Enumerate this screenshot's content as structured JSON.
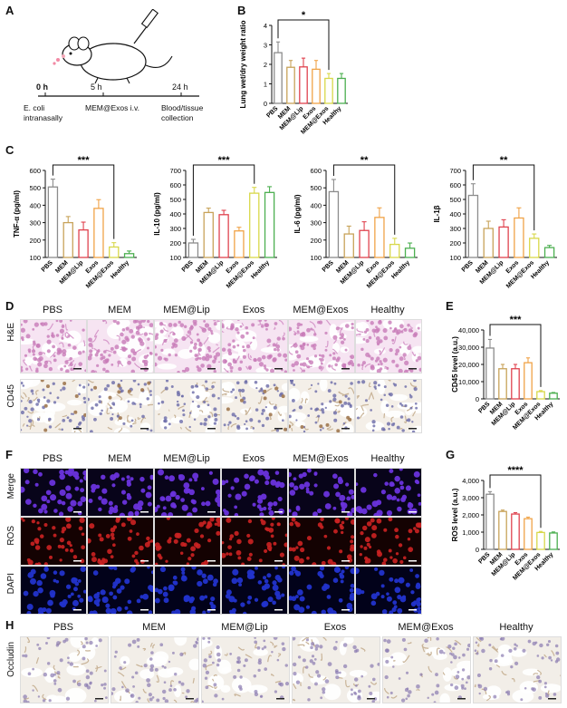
{
  "panels": {
    "A": {
      "label": "A",
      "timeline": [
        "0 h",
        "5 h",
        "24 h"
      ],
      "steps": [
        "E. coli intranasally",
        "MEM@Exos i.v.",
        "Blood/tissue collection"
      ]
    },
    "B": {
      "label": "B"
    },
    "C": {
      "label": "C"
    },
    "D": {
      "label": "D",
      "rows": [
        "H&E",
        "CD45"
      ]
    },
    "E": {
      "label": "E"
    },
    "F": {
      "label": "F",
      "rows": [
        "Merge",
        "ROS",
        "DAPI"
      ]
    },
    "G": {
      "label": "G"
    },
    "H": {
      "label": "H",
      "rows": [
        "Occludin"
      ]
    }
  },
  "groups": [
    "PBS",
    "MEM",
    "MEM@Lip",
    "Exos",
    "MEM@Exos",
    "Healthy"
  ],
  "colors": {
    "PBS": "#8c8c8c",
    "MEM": "#c8a35a",
    "MEM@Lip": "#e0434f",
    "Exos": "#f0a347",
    "MEM@Exos": "#d8d84a",
    "Healthy": "#4caf50",
    "he_stain": "#c87ab8",
    "ihc_stain": "#a07850",
    "dapi": "#2233cc",
    "ros": "#cc2222"
  },
  "chart_data": [
    {
      "id": "B",
      "type": "bar",
      "categories": [
        "PBS",
        "MEM",
        "MEM@Lip",
        "Exos",
        "MEM@Exos",
        "Healthy"
      ],
      "values": [
        2.6,
        1.85,
        1.87,
        1.75,
        1.28,
        1.28
      ],
      "errors": [
        0.55,
        0.35,
        0.45,
        0.45,
        0.25,
        0.25
      ],
      "ylabel": "Lung wet/dry weight ratio",
      "ylim": [
        0,
        4
      ],
      "yticks": [
        0,
        1,
        2,
        3,
        4
      ],
      "sig": {
        "from": 0,
        "to": 4,
        "label": "*"
      }
    },
    {
      "id": "C1",
      "type": "bar",
      "categories": [
        "PBS",
        "MEM",
        "MEM@Lip",
        "Exos",
        "MEM@Exos",
        "Healthy"
      ],
      "values": [
        505,
        300,
        258,
        382,
        160,
        122
      ],
      "errors": [
        45,
        35,
        45,
        50,
        25,
        15
      ],
      "ylabel": "TNF-α (pg/ml)",
      "ylim": [
        100,
        600
      ],
      "yticks": [
        100,
        200,
        300,
        400,
        500,
        600
      ],
      "sig": {
        "from": 0,
        "to": 4,
        "label": "***"
      }
    },
    {
      "id": "C2",
      "type": "bar",
      "categories": [
        "PBS",
        "MEM",
        "MEM@Lip",
        "Exos",
        "MEM@Exos",
        "Healthy"
      ],
      "values": [
        200,
        410,
        395,
        283,
        543,
        548
      ],
      "errors": [
        25,
        30,
        30,
        25,
        40,
        40
      ],
      "ylabel": "IL-10 (pg/ml)",
      "ylim": [
        100,
        700
      ],
      "yticks": [
        100,
        200,
        300,
        400,
        500,
        600,
        700
      ],
      "sig": {
        "from": 0,
        "to": 4,
        "label": "***"
      }
    },
    {
      "id": "C3",
      "type": "bar",
      "categories": [
        "PBS",
        "MEM",
        "MEM@Lip",
        "Exos",
        "MEM@Exos",
        "Healthy"
      ],
      "values": [
        478,
        235,
        255,
        330,
        175,
        153
      ],
      "errors": [
        70,
        45,
        50,
        55,
        35,
        30
      ],
      "ylabel": "IL-6 (pg/ml)",
      "ylim": [
        100,
        600
      ],
      "yticks": [
        100,
        200,
        300,
        400,
        500,
        600
      ],
      "sig": {
        "from": 0,
        "to": 4,
        "label": "**"
      }
    },
    {
      "id": "C4",
      "type": "bar",
      "categories": [
        "PBS",
        "MEM",
        "MEM@Lip",
        "Exos",
        "MEM@Exos",
        "Healthy"
      ],
      "values": [
        528,
        300,
        310,
        372,
        232,
        168
      ],
      "errors": [
        80,
        50,
        50,
        70,
        30,
        15
      ],
      "ylabel": "IL-1β",
      "ylim": [
        100,
        700
      ],
      "yticks": [
        100,
        200,
        300,
        400,
        500,
        600,
        700
      ],
      "sig": {
        "from": 0,
        "to": 4,
        "label": "**"
      }
    },
    {
      "id": "E",
      "type": "bar",
      "categories": [
        "PBS",
        "MEM",
        "MEM@Lip",
        "Exos",
        "MEM@Exos",
        "Healthy"
      ],
      "values": [
        29500,
        17500,
        17500,
        21000,
        4200,
        3300
      ],
      "errors": [
        5000,
        2500,
        2500,
        2800,
        600,
        400
      ],
      "ylabel": "CD45 level (a.u.)",
      "ylim": [
        0,
        40000
      ],
      "yticks": [
        0,
        10000,
        20000,
        30000,
        40000
      ],
      "ytick_labels": [
        "0",
        "10,000",
        "20,000",
        "30,000",
        "40,000"
      ],
      "sig": {
        "from": 0,
        "to": 4,
        "label": "***"
      }
    },
    {
      "id": "G",
      "type": "bar",
      "categories": [
        "PBS",
        "MEM",
        "MEM@Lip",
        "Exos",
        "MEM@Exos",
        "Healthy"
      ],
      "values": [
        3200,
        2200,
        2050,
        1780,
        980,
        950
      ],
      "errors": [
        150,
        80,
        80,
        90,
        60,
        60
      ],
      "ylabel": "ROS level (a.u.)",
      "ylim": [
        0,
        4000
      ],
      "yticks": [
        0,
        1000,
        2000,
        3000,
        4000
      ],
      "ytick_labels": [
        "0",
        "1,000",
        "2,000",
        "3,000",
        "4,000"
      ],
      "sig": {
        "from": 0,
        "to": 4,
        "label": "****"
      }
    }
  ]
}
